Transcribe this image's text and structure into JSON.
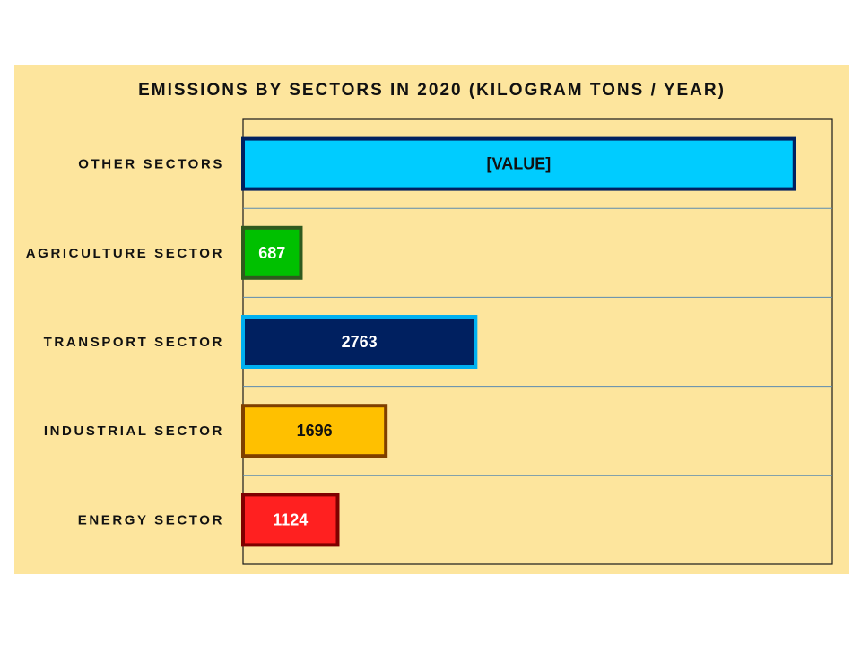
{
  "chart_data": {
    "type": "bar",
    "orientation": "horizontal",
    "title": "EMISSIONS BY SECTORS IN 2020 (KILOGRAM TONS / YEAR)",
    "categories": [
      "OTHER SECTORS",
      "AGRICULTURE SECTOR",
      "TRANSPORT SECTOR",
      "INDUSTRIAL SECTOR",
      "ENERGY SECTOR"
    ],
    "values": [
      6550,
      687,
      2763,
      1696,
      1124
    ],
    "data_labels": [
      "[VALUE]",
      "687",
      "2763",
      "1696",
      "1124"
    ],
    "xlim": [
      0,
      7000
    ],
    "grid": "horizontal category separators",
    "legend": "none",
    "background_color": "#fde59d",
    "bar_fill_colors": [
      "#00ccff",
      "#00c000",
      "#002060",
      "#ffc000",
      "#ff2020"
    ],
    "bar_border_colors": [
      "#002060",
      "#2f5a1e",
      "#00b0f0",
      "#7f3f00",
      "#7f0000"
    ],
    "label_colors": [
      "#111111",
      "#ffffff",
      "#ffffff",
      "#111111",
      "#ffffff"
    ]
  }
}
